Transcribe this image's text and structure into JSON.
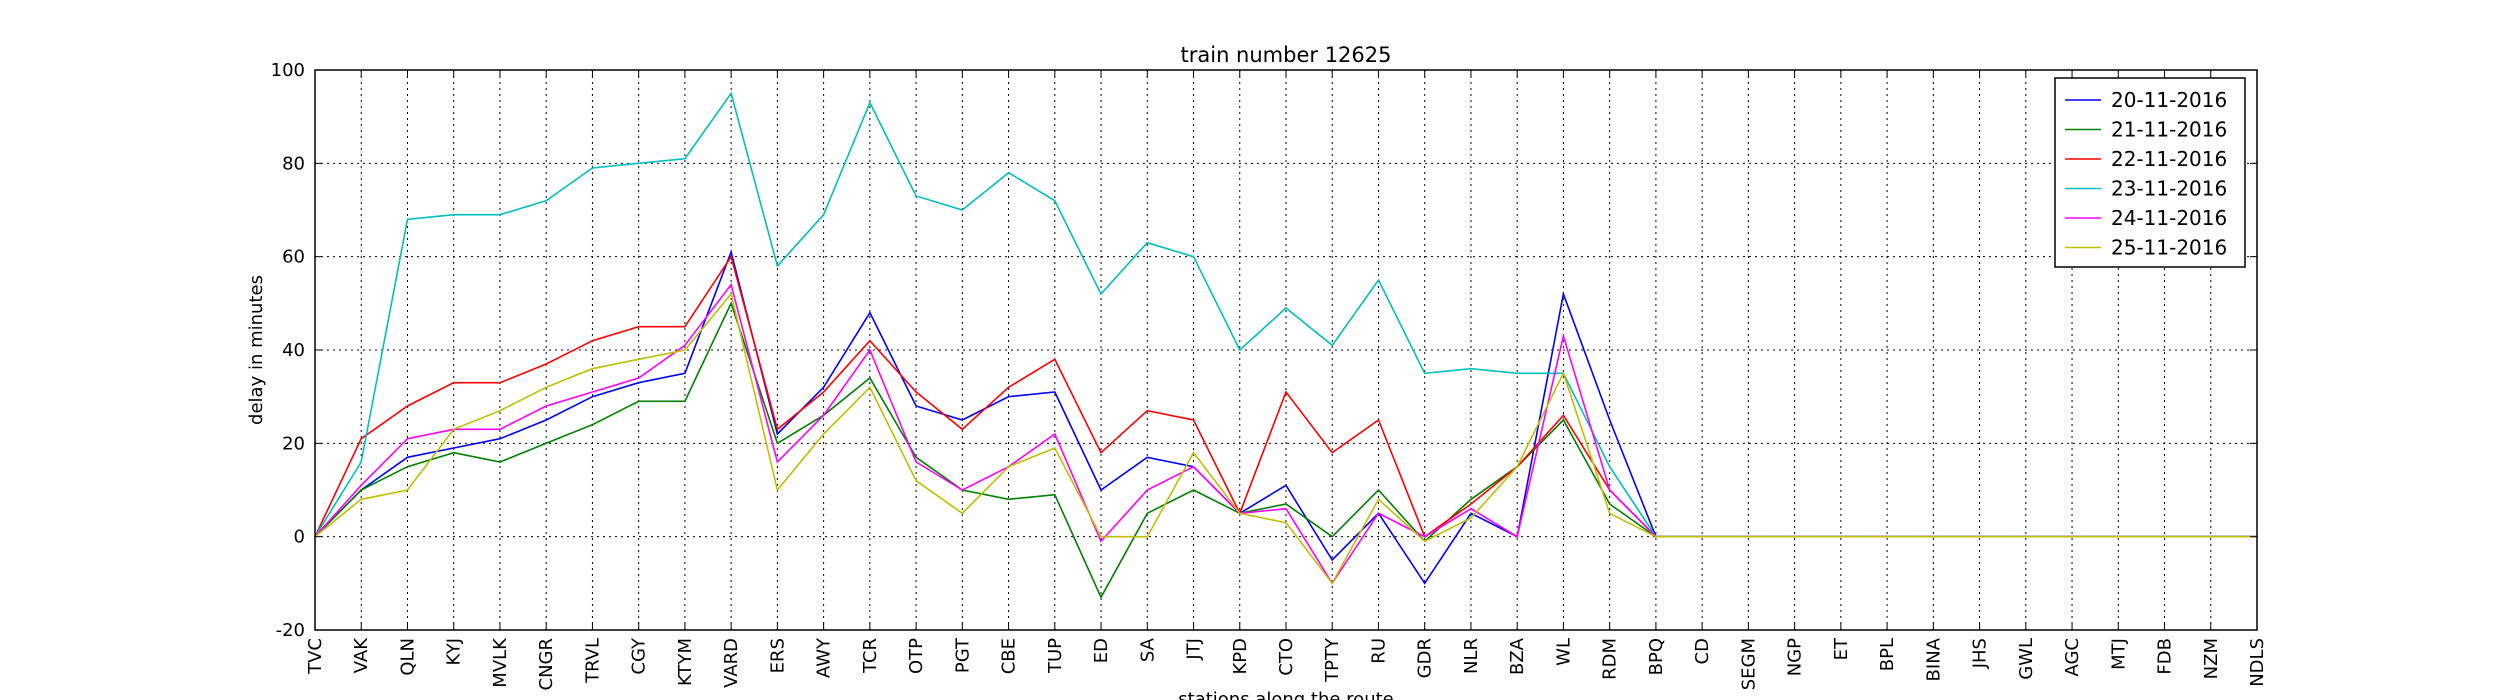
{
  "chart_data": {
    "type": "line",
    "title": "train number 12625",
    "xlabel": "stations along the route",
    "ylabel": "delay in minutes",
    "ylim": [
      -20,
      100
    ],
    "yticks": [
      -20,
      0,
      20,
      40,
      60,
      80,
      100
    ],
    "grid": true,
    "legend_position": "top-right",
    "categories": [
      "TVC",
      "VAK",
      "QLN",
      "KYJ",
      "MVLK",
      "CNGR",
      "TRVL",
      "CGY",
      "KTYM",
      "VARD",
      "ERS",
      "AWY",
      "TCR",
      "OTP",
      "PGT",
      "CBE",
      "TUP",
      "ED",
      "SA",
      "JTJ",
      "KPD",
      "CTO",
      "TPTY",
      "RU",
      "GDR",
      "NLR",
      "BZA",
      "WL",
      "RDM",
      "BPQ",
      "CD",
      "SEGM",
      "NGP",
      "ET",
      "BPL",
      "BINA",
      "JHS",
      "GWL",
      "AGC",
      "MTJ",
      "FDB",
      "NZM",
      "NDLS"
    ],
    "series": [
      {
        "name": "20-11-2016",
        "color": "#0000ff",
        "values": [
          0,
          10,
          17,
          19,
          21,
          25,
          30,
          33,
          35,
          61,
          22,
          32,
          48,
          28,
          25,
          30,
          31,
          10,
          17,
          15,
          5,
          11,
          -5,
          5,
          -10,
          5,
          0,
          52,
          25,
          0,
          0,
          0,
          0,
          0,
          0,
          0,
          0,
          0,
          0,
          0,
          0,
          0,
          0
        ]
      },
      {
        "name": "21-11-2016",
        "color": "#008000",
        "values": [
          0,
          10,
          15,
          18,
          16,
          20,
          24,
          29,
          29,
          50,
          20,
          26,
          34,
          17,
          10,
          8,
          9,
          -13,
          5,
          10,
          5,
          7,
          0,
          10,
          -1,
          8,
          15,
          25,
          7,
          0,
          0,
          0,
          0,
          0,
          0,
          0,
          0,
          0,
          0,
          0,
          0,
          0,
          0
        ]
      },
      {
        "name": "22-11-2016",
        "color": "#ff0000",
        "values": [
          0,
          21,
          28,
          33,
          33,
          37,
          42,
          45,
          45,
          60,
          23,
          31,
          42,
          31,
          23,
          32,
          38,
          18,
          27,
          25,
          5,
          31,
          18,
          25,
          0,
          7,
          15,
          26,
          10,
          0,
          0,
          0,
          0,
          0,
          0,
          0,
          0,
          0,
          0,
          0,
          0,
          0,
          0
        ]
      },
      {
        "name": "23-11-2016",
        "color": "#00bfbf",
        "values": [
          0,
          16,
          68,
          69,
          69,
          72,
          79,
          80,
          81,
          95,
          58,
          69,
          93,
          73,
          70,
          78,
          72,
          52,
          63,
          60,
          40,
          49,
          41,
          55,
          35,
          36,
          35,
          35,
          15,
          0,
          0,
          0,
          0,
          0,
          0,
          0,
          0,
          0,
          0,
          0,
          0,
          0,
          0
        ]
      },
      {
        "name": "24-11-2016",
        "color": "#ff00ff",
        "values": [
          0,
          11,
          21,
          23,
          23,
          28,
          31,
          34,
          41,
          54,
          16,
          26,
          40,
          16,
          10,
          15,
          22,
          -1,
          10,
          15,
          5,
          6,
          -10,
          5,
          0,
          6,
          0,
          43,
          10,
          0,
          0,
          0,
          0,
          0,
          0,
          0,
          0,
          0,
          0,
          0,
          0,
          0,
          0
        ]
      },
      {
        "name": "25-11-2016",
        "color": "#bfbf00",
        "values": [
          0,
          8,
          10,
          23,
          27,
          32,
          36,
          38,
          40,
          52,
          10,
          22,
          32,
          12,
          5,
          15,
          19,
          0,
          0,
          18,
          5,
          3,
          -10,
          8,
          -1,
          4,
          15,
          35,
          5,
          0,
          0,
          0,
          0,
          0,
          0,
          0,
          0,
          0,
          0,
          0,
          0,
          0,
          0
        ]
      }
    ]
  }
}
